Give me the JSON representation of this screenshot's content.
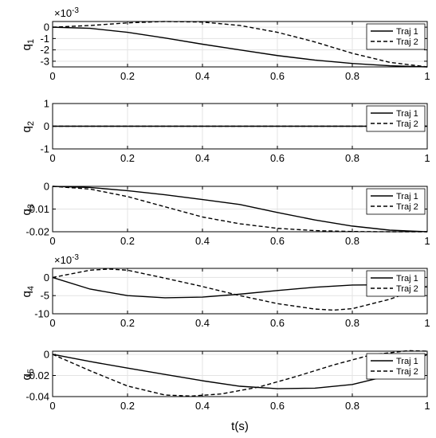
{
  "chart_data": [
    {
      "type": "line",
      "ylabel": "q",
      "ylabel_sub": "1",
      "multiplier": "×10",
      "multiplier_exp": "-3",
      "ylim": [
        -3.5,
        0.5
      ],
      "yticks": [
        0,
        -1,
        -2,
        -3
      ],
      "ytick_labels": [
        "0",
        "-1",
        "-2",
        "-3"
      ],
      "xlim": [
        0,
        1
      ],
      "xticks": [
        0,
        0.2,
        0.4,
        0.6,
        0.8,
        1
      ],
      "xtick_labels": [
        "0",
        "0.2",
        "0.4",
        "0.6",
        "0.8",
        "1"
      ],
      "grid": true,
      "legend_placement": "top-right",
      "series": [
        {
          "name": "Traj 1",
          "style": "solid",
          "x": [
            0,
            0.1,
            0.2,
            0.3,
            0.4,
            0.5,
            0.6,
            0.7,
            0.8,
            0.9,
            1.0
          ],
          "y": [
            0,
            -0.1,
            -0.45,
            -0.95,
            -1.5,
            -2.0,
            -2.5,
            -2.9,
            -3.2,
            -3.4,
            -3.5
          ]
        },
        {
          "name": "Traj 2",
          "style": "dashed",
          "x": [
            0,
            0.1,
            0.2,
            0.3,
            0.4,
            0.5,
            0.6,
            0.7,
            0.8,
            0.9,
            1.0
          ],
          "y": [
            0,
            0.15,
            0.38,
            0.5,
            0.45,
            0.15,
            -0.45,
            -1.3,
            -2.3,
            -3.1,
            -3.5
          ]
        }
      ]
    },
    {
      "type": "line",
      "ylabel": "q",
      "ylabel_sub": "2",
      "ylim": [
        -1,
        1
      ],
      "yticks": [
        1,
        0,
        -1
      ],
      "ytick_labels": [
        "1",
        "0",
        "-1"
      ],
      "xlim": [
        0,
        1
      ],
      "xticks": [
        0,
        0.2,
        0.4,
        0.6,
        0.8,
        1
      ],
      "xtick_labels": [
        "0",
        "0.2",
        "0.4",
        "0.6",
        "0.8",
        "1"
      ],
      "grid": true,
      "legend_placement": "top-right",
      "series": [
        {
          "name": "Traj 1",
          "style": "solid",
          "x": [
            0,
            1
          ],
          "y": [
            0,
            0
          ]
        },
        {
          "name": "Traj 2",
          "style": "dashed",
          "x": [
            0,
            1
          ],
          "y": [
            0,
            0
          ]
        }
      ]
    },
    {
      "type": "line",
      "ylabel": "q",
      "ylabel_sub": "3",
      "ylim": [
        -0.02,
        0
      ],
      "yticks": [
        0,
        -0.01,
        -0.02
      ],
      "ytick_labels": [
        "0",
        "-0.01",
        "-0.02"
      ],
      "xlim": [
        0,
        1
      ],
      "xticks": [
        0,
        0.2,
        0.4,
        0.6,
        0.8,
        1
      ],
      "xtick_labels": [
        "0",
        "0.2",
        "0.4",
        "0.6",
        "0.8",
        "1"
      ],
      "grid": true,
      "legend_placement": "top-right",
      "series": [
        {
          "name": "Traj 1",
          "style": "solid",
          "x": [
            0,
            0.1,
            0.2,
            0.3,
            0.4,
            0.5,
            0.6,
            0.7,
            0.8,
            0.9,
            1.0
          ],
          "y": [
            0,
            -0.0005,
            -0.0019,
            -0.0037,
            -0.0058,
            -0.008,
            -0.0115,
            -0.0148,
            -0.0175,
            -0.0193,
            -0.02
          ]
        },
        {
          "name": "Traj 2",
          "style": "dashed",
          "x": [
            0,
            0.1,
            0.2,
            0.3,
            0.4,
            0.5,
            0.6,
            0.7,
            0.8,
            0.9,
            1.0
          ],
          "y": [
            0,
            -0.0012,
            -0.0045,
            -0.009,
            -0.0135,
            -0.0165,
            -0.0185,
            -0.0195,
            -0.0199,
            -0.02,
            -0.02
          ]
        }
      ]
    },
    {
      "type": "line",
      "ylabel": "q",
      "ylabel_sub": "4",
      "multiplier": "×10",
      "multiplier_exp": "-3",
      "ylim": [
        -10,
        2.5
      ],
      "yticks": [
        0,
        -5,
        -10
      ],
      "ytick_labels": [
        "0",
        "-5",
        "-10"
      ],
      "xlim": [
        0,
        1
      ],
      "xticks": [
        0,
        0.2,
        0.4,
        0.6,
        0.8,
        1
      ],
      "xtick_labels": [
        "0",
        "0.2",
        "0.4",
        "0.6",
        "0.8",
        "1"
      ],
      "grid": true,
      "legend_placement": "top-right",
      "series": [
        {
          "name": "Traj 1",
          "style": "solid",
          "x": [
            0,
            0.1,
            0.2,
            0.3,
            0.4,
            0.5,
            0.6,
            0.7,
            0.8,
            0.9,
            1.0
          ],
          "y": [
            0,
            -3.2,
            -5.0,
            -5.6,
            -5.4,
            -4.6,
            -3.6,
            -2.7,
            -2.1,
            -2.0,
            -2.6
          ]
        },
        {
          "name": "Traj 2",
          "style": "dashed",
          "x": [
            0,
            0.1,
            0.15,
            0.2,
            0.3,
            0.4,
            0.5,
            0.6,
            0.7,
            0.75,
            0.8,
            0.9,
            1.0
          ],
          "y": [
            0,
            2.0,
            2.3,
            2.0,
            -0.2,
            -2.5,
            -5.0,
            -7.2,
            -8.7,
            -9.0,
            -8.6,
            -6.0,
            -2.3
          ]
        }
      ]
    },
    {
      "type": "line",
      "ylabel": "q",
      "ylabel_sub": "5",
      "xlabel": "t(s)",
      "ylim": [
        -0.04,
        0.003
      ],
      "yticks": [
        0,
        -0.02,
        -0.04
      ],
      "ytick_labels": [
        "0",
        "-0.02",
        "-0.04"
      ],
      "xlim": [
        0,
        1
      ],
      "xticks": [
        0,
        0.2,
        0.4,
        0.6,
        0.8,
        1
      ],
      "xtick_labels": [
        "0",
        "0.2",
        "0.4",
        "0.6",
        "0.8",
        "1"
      ],
      "grid": true,
      "legend_placement": "top-right",
      "series": [
        {
          "name": "Traj 1",
          "style": "solid",
          "x": [
            0,
            0.1,
            0.2,
            0.3,
            0.4,
            0.5,
            0.6,
            0.7,
            0.8,
            0.9,
            1.0
          ],
          "y": [
            0,
            -0.0068,
            -0.013,
            -0.019,
            -0.025,
            -0.0302,
            -0.0325,
            -0.032,
            -0.0285,
            -0.02,
            0
          ]
        },
        {
          "name": "Traj 2",
          "style": "dashed",
          "x": [
            0,
            0.1,
            0.2,
            0.3,
            0.37,
            0.45,
            0.55,
            0.65,
            0.75,
            0.85,
            0.95,
            1.0
          ],
          "y": [
            0,
            -0.0155,
            -0.03,
            -0.0385,
            -0.0395,
            -0.0375,
            -0.031,
            -0.021,
            -0.01,
            -0.0005,
            0.0035,
            0.003
          ]
        }
      ]
    }
  ]
}
